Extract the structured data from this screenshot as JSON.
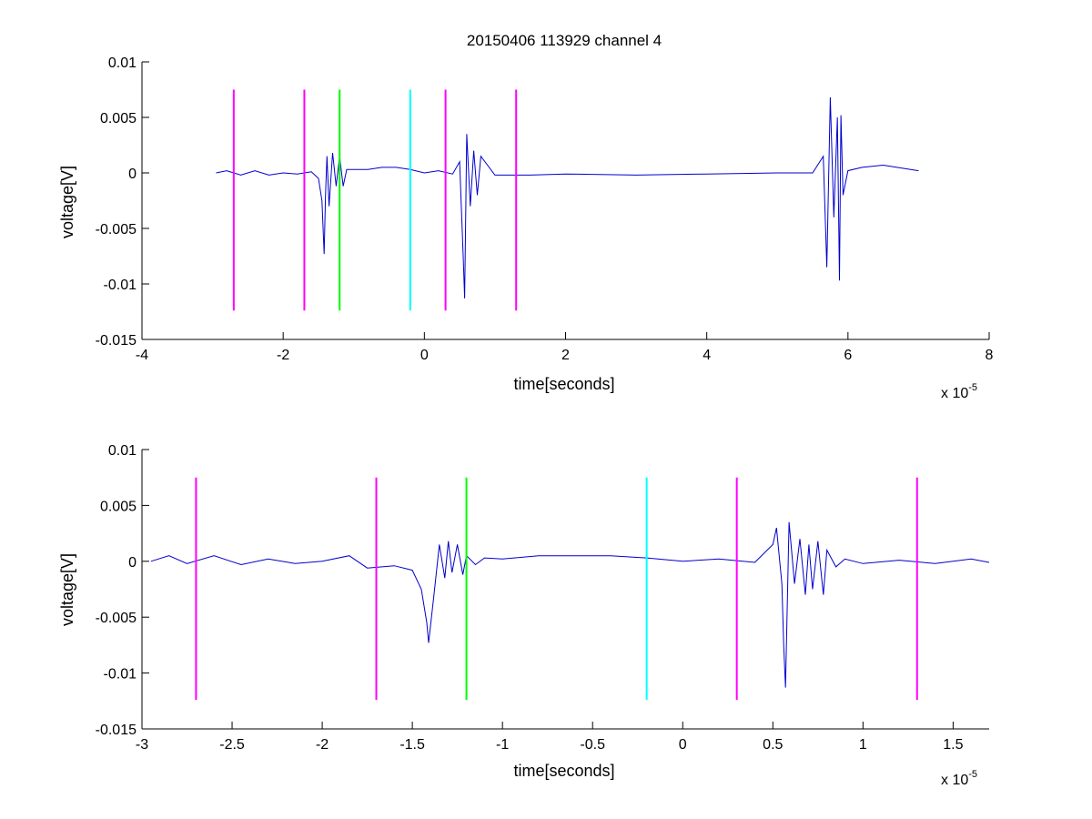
{
  "chart_data": [
    {
      "type": "line",
      "title": "20150406 113929 channel 4",
      "xlabel": "time[seconds]",
      "ylabel": "voltage[V]",
      "x_exponent": "x 10",
      "x_exponent_power": "-5",
      "xlim": [
        -4,
        8
      ],
      "ylim": [
        -0.015,
        0.01
      ],
      "xticks": [
        -4,
        -2,
        0,
        2,
        4,
        6,
        8
      ],
      "xtick_labels": [
        "-4",
        "-2",
        "0",
        "2",
        "4",
        "6",
        "8"
      ],
      "yticks": [
        -0.015,
        -0.01,
        -0.005,
        0,
        0.005,
        0.01
      ],
      "ytick_labels": [
        "-0.015",
        "-0.01",
        "-0.005",
        "0",
        "0.005",
        "0.01"
      ],
      "grid": false,
      "series": [
        {
          "color": "#0000cc",
          "x": [
            -2.95,
            -2.8,
            -2.6,
            -2.4,
            -2.2,
            -2.0,
            -1.8,
            -1.6,
            -1.5,
            -1.45,
            -1.42,
            -1.4,
            -1.38,
            -1.35,
            -1.3,
            -1.25,
            -1.2,
            -1.15,
            -1.1,
            -1.0,
            -0.8,
            -0.6,
            -0.4,
            -0.2,
            0.0,
            0.2,
            0.4,
            0.5,
            0.55,
            0.57,
            0.6,
            0.65,
            0.7,
            0.75,
            0.8,
            1.0,
            1.5,
            2.0,
            3.0,
            4.0,
            5.0,
            5.5,
            5.65,
            5.7,
            5.75,
            5.8,
            5.85,
            5.88,
            5.9,
            5.93,
            6.0,
            6.2,
            6.5,
            7.0
          ],
          "y": [
            0.0,
            0.0002,
            -0.0002,
            0.0002,
            -0.0002,
            0.0,
            -0.0001,
            0.0001,
            -0.0005,
            -0.0025,
            -0.0073,
            -0.002,
            0.0015,
            -0.003,
            0.0018,
            -0.0012,
            0.0015,
            -0.0012,
            0.0003,
            0.0003,
            0.0003,
            0.0005,
            0.0005,
            0.0003,
            0.0,
            0.0002,
            -0.0001,
            0.001,
            -0.0075,
            -0.0113,
            0.0035,
            -0.003,
            0.002,
            -0.002,
            0.0015,
            -0.0002,
            -0.0002,
            -0.0001,
            -0.0002,
            -0.0001,
            0.0,
            0.0,
            0.0015,
            -0.0085,
            0.0068,
            -0.004,
            0.005,
            -0.0097,
            0.0052,
            -0.002,
            0.0002,
            0.0005,
            0.0007,
            0.0002
          ]
        }
      ],
      "vlines": [
        {
          "x": -2.7,
          "color": "#ff00ff",
          "ymin": -0.0124,
          "ymax": 0.0075
        },
        {
          "x": -1.7,
          "color": "#ff00ff",
          "ymin": -0.0124,
          "ymax": 0.0075
        },
        {
          "x": -1.2,
          "color": "#00ff00",
          "ymin": -0.0124,
          "ymax": 0.0075
        },
        {
          "x": -0.2,
          "color": "#00ffff",
          "ymin": -0.0124,
          "ymax": 0.0075
        },
        {
          "x": 0.3,
          "color": "#ff00ff",
          "ymin": -0.0124,
          "ymax": 0.0075
        },
        {
          "x": 1.3,
          "color": "#ff00ff",
          "ymin": -0.0124,
          "ymax": 0.0075
        }
      ]
    },
    {
      "type": "line",
      "title": "",
      "xlabel": "time[seconds]",
      "ylabel": "voltage[V]",
      "x_exponent": "x 10",
      "x_exponent_power": "-5",
      "xlim": [
        -3.0,
        1.7
      ],
      "ylim": [
        -0.015,
        0.01
      ],
      "xticks": [
        -3,
        -2.5,
        -2,
        -1.5,
        -1,
        -0.5,
        0,
        0.5,
        1,
        1.5
      ],
      "xtick_labels": [
        "-3",
        "-2.5",
        "-2",
        "-1.5",
        "-1",
        "-0.5",
        "0",
        "0.5",
        "1",
        "1.5"
      ],
      "yticks": [
        -0.015,
        -0.01,
        -0.005,
        0,
        0.005,
        0.01
      ],
      "ytick_labels": [
        "-0.015",
        "-0.01",
        "-0.005",
        "0",
        "0.005",
        "0.01"
      ],
      "grid": false,
      "series": [
        {
          "color": "#0000cc",
          "x": [
            -2.95,
            -2.85,
            -2.75,
            -2.6,
            -2.45,
            -2.3,
            -2.15,
            -2.0,
            -1.85,
            -1.75,
            -1.6,
            -1.5,
            -1.45,
            -1.42,
            -1.41,
            -1.38,
            -1.35,
            -1.32,
            -1.3,
            -1.28,
            -1.25,
            -1.22,
            -1.2,
            -1.15,
            -1.1,
            -1.0,
            -0.8,
            -0.6,
            -0.4,
            -0.2,
            0.0,
            0.2,
            0.4,
            0.5,
            0.52,
            0.55,
            0.56,
            0.57,
            0.59,
            0.62,
            0.65,
            0.68,
            0.7,
            0.72,
            0.75,
            0.78,
            0.8,
            0.85,
            0.9,
            1.0,
            1.2,
            1.4,
            1.6,
            1.7
          ],
          "y": [
            0.0,
            0.0005,
            -0.0002,
            0.0005,
            -0.0003,
            0.0002,
            -0.0002,
            0.0,
            0.0005,
            -0.0006,
            -0.0004,
            -0.0008,
            -0.0025,
            -0.0055,
            -0.0073,
            -0.003,
            0.0015,
            -0.0015,
            0.0018,
            -0.001,
            0.0015,
            -0.0012,
            0.0005,
            -0.0003,
            0.0003,
            0.0002,
            0.0005,
            0.0005,
            0.0005,
            0.0003,
            0.0,
            0.0002,
            -0.0001,
            0.0015,
            0.003,
            -0.002,
            -0.0075,
            -0.0113,
            0.0035,
            -0.002,
            0.002,
            -0.003,
            0.0015,
            -0.0025,
            0.0018,
            -0.003,
            0.001,
            -0.0005,
            0.0002,
            -0.0002,
            0.0001,
            -0.0002,
            0.0002,
            -0.0001
          ]
        }
      ],
      "vlines": [
        {
          "x": -2.7,
          "color": "#ff00ff",
          "ymin": -0.0124,
          "ymax": 0.0075
        },
        {
          "x": -1.7,
          "color": "#ff00ff",
          "ymin": -0.0124,
          "ymax": 0.0075
        },
        {
          "x": -1.2,
          "color": "#00ff00",
          "ymin": -0.0124,
          "ymax": 0.0075
        },
        {
          "x": -0.2,
          "color": "#00ffff",
          "ymin": -0.0124,
          "ymax": 0.0075
        },
        {
          "x": 0.3,
          "color": "#ff00ff",
          "ymin": -0.0124,
          "ymax": 0.0075
        },
        {
          "x": 1.3,
          "color": "#ff00ff",
          "ymin": -0.0124,
          "ymax": 0.0075
        }
      ]
    }
  ]
}
